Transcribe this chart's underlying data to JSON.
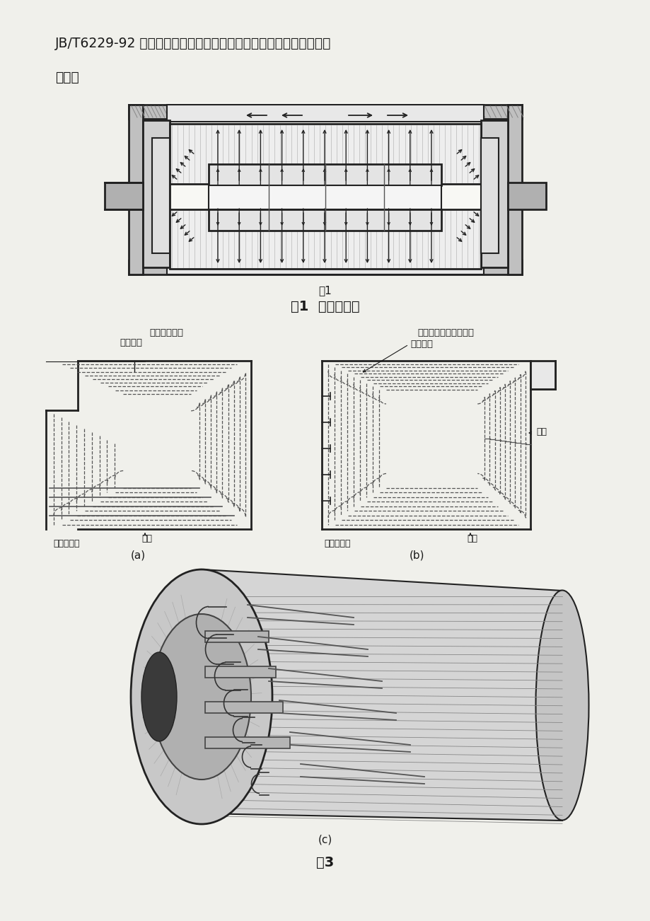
{
  "bg": "#f0f0eb",
  "text_color": "#1a1a1a",
  "line_color": "#222222",
  "text1": "JB/T6229-92 推荐压力。另外，想掌握在不同压力下各风孔通风变化",
  "text2": "情况。",
  "fig1_small": "图1",
  "fig1_caption": "图1  风路示意图",
  "label_a": "(a)",
  "label_b": "(b)",
  "label_c": "(c)",
  "fig3_caption": "图3",
  "t_fxqnql": "分线圈内气流",
  "t_zzbt": "转子本体",
  "t_cfg": "出风槽（转子本体上）",
  "t_fqhk": "风区隔块",
  "t_jf": "进风",
  "t_dcxzx": "大齿中心线"
}
